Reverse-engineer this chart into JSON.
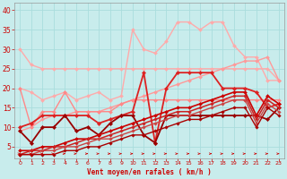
{
  "background_color": "#c8ecec",
  "grid_color": "#aadddd",
  "xlabel": "Vent moyen/en rafales ( km/h )",
  "xlabel_color": "#cc0000",
  "tick_color": "#cc0000",
  "xlim": [
    -0.5,
    23.5
  ],
  "ylim": [
    2,
    42
  ],
  "yticks": [
    5,
    10,
    15,
    20,
    25,
    30,
    35,
    40
  ],
  "xticks": [
    0,
    1,
    2,
    3,
    4,
    5,
    6,
    7,
    8,
    9,
    10,
    11,
    12,
    13,
    14,
    15,
    16,
    17,
    18,
    19,
    20,
    21,
    22,
    23
  ],
  "series": [
    {
      "x": [
        0,
        1,
        2,
        3,
        4,
        5,
        6,
        7,
        8,
        9,
        10,
        11,
        12,
        13,
        14,
        15,
        16,
        17,
        18,
        19,
        20,
        21,
        22,
        23
      ],
      "y": [
        30,
        26,
        25,
        25,
        25,
        25,
        25,
        25,
        25,
        25,
        25,
        25,
        25,
        25,
        25,
        25,
        25,
        25,
        25,
        25,
        25,
        25,
        25,
        22
      ],
      "color": "#ffaaaa",
      "linewidth": 1.0,
      "marker": "D",
      "markersize": 2.0
    },
    {
      "x": [
        0,
        1,
        2,
        3,
        4,
        5,
        6,
        7,
        8,
        9,
        10,
        11,
        12,
        13,
        14,
        15,
        16,
        17,
        18,
        19,
        20,
        21,
        22,
        23
      ],
      "y": [
        20,
        19,
        17,
        18,
        19,
        17,
        18,
        19,
        17,
        18,
        35,
        30,
        29,
        32,
        37,
        37,
        35,
        37,
        37,
        31,
        28,
        28,
        22,
        22
      ],
      "color": "#ffaaaa",
      "linewidth": 1.0,
      "marker": "D",
      "markersize": 2.0
    },
    {
      "x": [
        0,
        1,
        2,
        3,
        4,
        5,
        6,
        7,
        8,
        9,
        10,
        11,
        12,
        13,
        14,
        15,
        16,
        17,
        18,
        19,
        20,
        21,
        22,
        23
      ],
      "y": [
        9,
        10,
        12,
        13,
        13,
        14,
        14,
        14,
        15,
        16,
        17,
        18,
        19,
        20,
        21,
        22,
        23,
        24,
        25,
        26,
        27,
        27,
        28,
        22
      ],
      "color": "#ff9999",
      "linewidth": 1.0,
      "marker": "D",
      "markersize": 2.0
    },
    {
      "x": [
        0,
        1,
        2,
        3,
        4,
        5,
        6,
        7,
        8,
        9,
        10,
        11,
        12,
        13,
        14,
        15,
        16,
        17,
        18,
        19,
        20,
        21,
        22,
        23
      ],
      "y": [
        20,
        10,
        14,
        14,
        19,
        14,
        14,
        14,
        14,
        16,
        17,
        17,
        17,
        17,
        17,
        17,
        17,
        17,
        17,
        17,
        17,
        17,
        17,
        17
      ],
      "color": "#ff8888",
      "linewidth": 1.0,
      "marker": "D",
      "markersize": 2.0
    },
    {
      "x": [
        0,
        1,
        2,
        3,
        4,
        5,
        6,
        7,
        8,
        9,
        10,
        11,
        12,
        13,
        14,
        15,
        16,
        17,
        18,
        19,
        20,
        21,
        22,
        23
      ],
      "y": [
        10,
        11,
        13,
        13,
        13,
        13,
        13,
        11,
        12,
        13,
        14,
        24,
        6,
        20,
        24,
        24,
        24,
        24,
        20,
        20,
        20,
        19,
        15,
        16
      ],
      "color": "#dd2222",
      "linewidth": 1.3,
      "marker": "D",
      "markersize": 2.2
    },
    {
      "x": [
        0,
        1,
        2,
        3,
        4,
        5,
        6,
        7,
        8,
        9,
        10,
        11,
        12,
        13,
        14,
        15,
        16,
        17,
        18,
        19,
        20,
        21,
        22,
        23
      ],
      "y": [
        9,
        6,
        10,
        10,
        13,
        9,
        10,
        8,
        11,
        13,
        13,
        8,
        6,
        13,
        13,
        13,
        13,
        13,
        13,
        13,
        13,
        13,
        12,
        15
      ],
      "color": "#990000",
      "linewidth": 1.3,
      "marker": "D",
      "markersize": 2.2
    },
    {
      "x": [
        0,
        1,
        2,
        3,
        4,
        5,
        6,
        7,
        8,
        9,
        10,
        11,
        12,
        13,
        14,
        15,
        16,
        17,
        18,
        19,
        20,
        21,
        22,
        23
      ],
      "y": [
        4,
        4,
        5,
        5,
        6,
        7,
        7,
        8,
        9,
        10,
        11,
        12,
        13,
        14,
        15,
        15,
        16,
        17,
        18,
        19,
        19,
        13,
        18,
        16
      ],
      "color": "#cc0000",
      "linewidth": 1.2,
      "marker": "D",
      "markersize": 2.0
    },
    {
      "x": [
        0,
        1,
        2,
        3,
        4,
        5,
        6,
        7,
        8,
        9,
        10,
        11,
        12,
        13,
        14,
        15,
        16,
        17,
        18,
        19,
        20,
        21,
        22,
        23
      ],
      "y": [
        3,
        4,
        4,
        5,
        5,
        6,
        7,
        7,
        8,
        9,
        10,
        11,
        12,
        13,
        14,
        14,
        15,
        16,
        17,
        18,
        18,
        12,
        17,
        15
      ],
      "color": "#cc2222",
      "linewidth": 1.1,
      "marker": "D",
      "markersize": 1.8
    },
    {
      "x": [
        0,
        1,
        2,
        3,
        4,
        5,
        6,
        7,
        8,
        9,
        10,
        11,
        12,
        13,
        14,
        15,
        16,
        17,
        18,
        19,
        20,
        21,
        22,
        23
      ],
      "y": [
        3,
        3,
        4,
        4,
        5,
        5,
        6,
        7,
        7,
        8,
        9,
        10,
        11,
        12,
        13,
        13,
        14,
        15,
        16,
        17,
        17,
        11,
        16,
        14
      ],
      "color": "#cc4444",
      "linewidth": 1.0,
      "marker": "D",
      "markersize": 1.8
    },
    {
      "x": [
        0,
        1,
        2,
        3,
        4,
        5,
        6,
        7,
        8,
        9,
        10,
        11,
        12,
        13,
        14,
        15,
        16,
        17,
        18,
        19,
        20,
        21,
        22,
        23
      ],
      "y": [
        3,
        3,
        3,
        3,
        4,
        4,
        5,
        5,
        6,
        7,
        8,
        8,
        9,
        10,
        11,
        12,
        12,
        13,
        14,
        15,
        15,
        10,
        15,
        13
      ],
      "color": "#aa0000",
      "linewidth": 1.0,
      "marker": "D",
      "markersize": 1.8
    }
  ]
}
